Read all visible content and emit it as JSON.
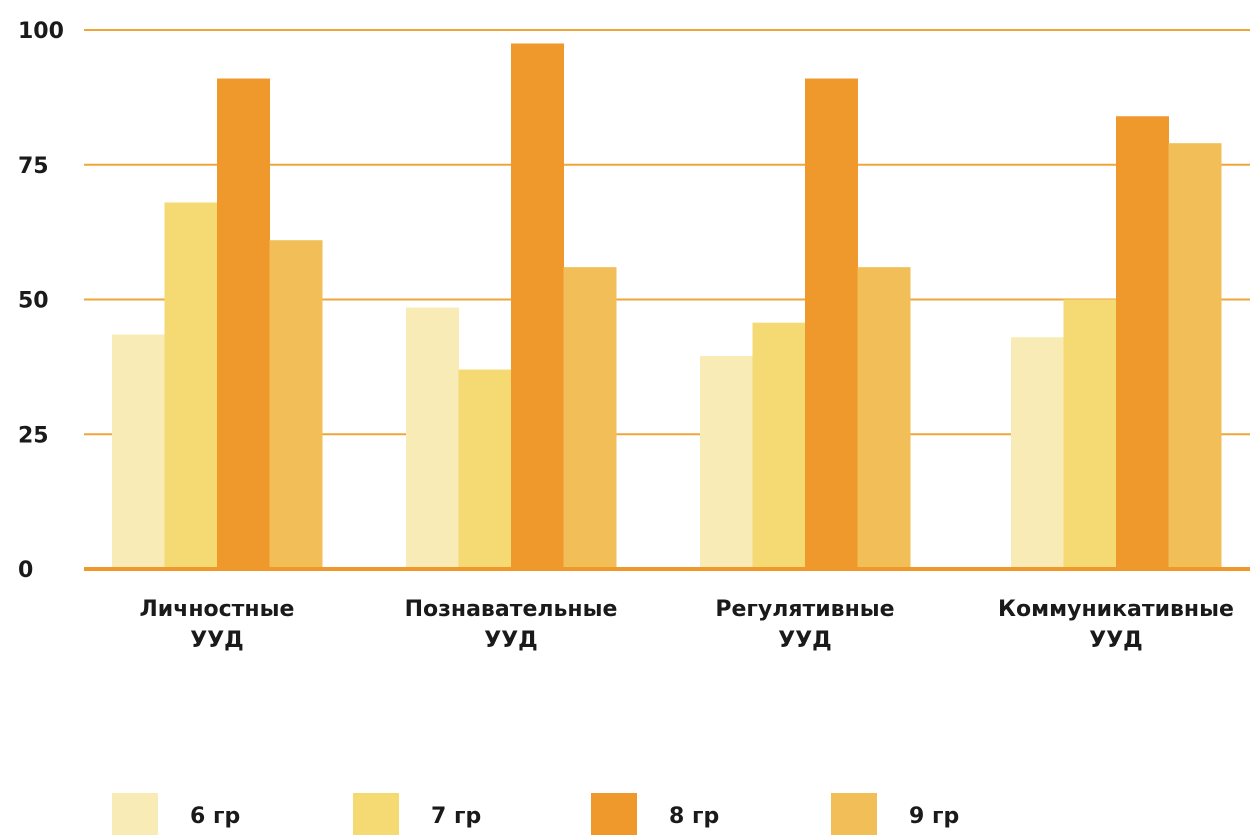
{
  "chart_data": {
    "type": "bar",
    "categories": [
      [
        "Личностные",
        "УУД"
      ],
      [
        "Познавательные",
        "УУД"
      ],
      [
        "Регулятивные",
        "УУД"
      ],
      [
        "Коммуникативные",
        "УУД"
      ]
    ],
    "series": [
      {
        "name": "6 гр",
        "color": "#f8ebb6",
        "values": [
          43.5,
          48.5,
          39.5,
          43
        ]
      },
      {
        "name": "7 гр",
        "color": "#f5da74",
        "values": [
          68,
          37,
          45.7,
          50
        ]
      },
      {
        "name": "8 гр",
        "color": "#ef982c",
        "values": [
          91,
          97.5,
          91,
          84
        ]
      },
      {
        "name": "9 гр",
        "color": "#f2be57",
        "values": [
          61,
          56,
          56,
          79
        ]
      }
    ],
    "yticks": [
      "0",
      "25",
      "50",
      "75",
      "100"
    ],
    "ylim": [
      0,
      100
    ],
    "grid": true,
    "grid_color": "#f0a53a",
    "axis_color": "#ef982c",
    "legend_position": "bottom",
    "title": "",
    "xlabel": "",
    "ylabel": ""
  }
}
